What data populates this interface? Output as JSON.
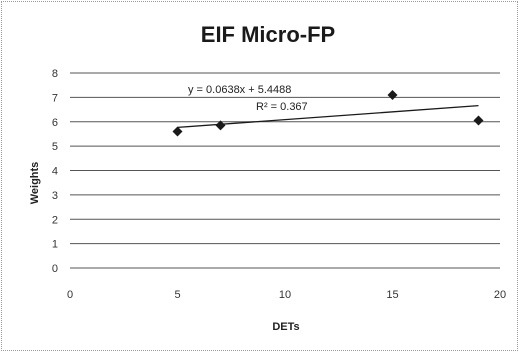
{
  "chart_data": {
    "type": "scatter",
    "title": "EIF Micro-FP",
    "xlabel": "DETs",
    "ylabel": "Weights",
    "xlim": [
      0,
      20
    ],
    "ylim": [
      0,
      8
    ],
    "xticks": [
      "0",
      "5",
      "10",
      "15",
      "20"
    ],
    "yticks": [
      "0",
      "1",
      "2",
      "3",
      "4",
      "5",
      "6",
      "7",
      "8"
    ],
    "points": [
      {
        "x": 5,
        "y": 5.6
      },
      {
        "x": 7,
        "y": 5.85
      },
      {
        "x": 15,
        "y": 7.1
      },
      {
        "x": 19,
        "y": 6.05
      }
    ],
    "trendline": {
      "slope": 0.0638,
      "intercept": 5.4488,
      "x_range": [
        5,
        19
      ],
      "equation": "y = 0.0638x + 5.4488",
      "r_squared": "R² = 0.367"
    },
    "grid": true,
    "legend": "none",
    "marker": "diamond",
    "colors": {
      "marker": "#1a1a1a",
      "line": "#1a1a1a",
      "grid": "#555555"
    }
  }
}
